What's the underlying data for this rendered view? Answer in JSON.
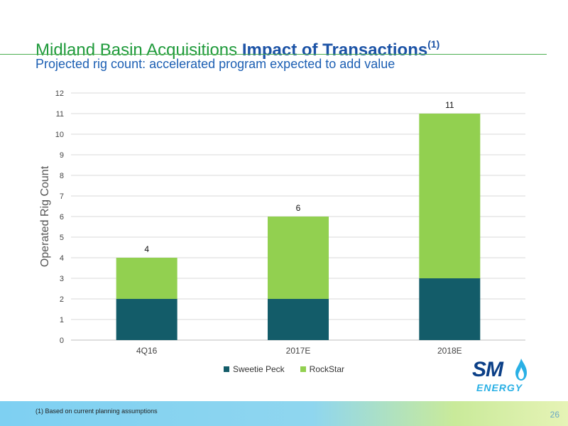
{
  "header": {
    "title_regular": "Midland Basin Acquisitions",
    "title_bold": "Impact of Transactions",
    "title_sup": "(1)",
    "subtitle": "Projected rig count: accelerated program expected to add value"
  },
  "chart_data": {
    "type": "bar",
    "stacked": true,
    "categories": [
      "4Q16",
      "2017E",
      "2018E"
    ],
    "series": [
      {
        "name": "Sweetie Peck",
        "values": [
          2,
          2,
          3
        ],
        "color": "#135c69"
      },
      {
        "name": "RockStar",
        "values": [
          2,
          4,
          8
        ],
        "color": "#92d050"
      }
    ],
    "totals": [
      4,
      6,
      11
    ],
    "ylabel": "Operated Rig Count",
    "xlabel": "",
    "ylim": [
      0,
      12
    ],
    "yticks": [
      0,
      1,
      2,
      3,
      4,
      5,
      6,
      7,
      8,
      9,
      10,
      11,
      12
    ],
    "grid": true,
    "legend_position": "bottom"
  },
  "logo": {
    "name": "SM Energy",
    "line1": "SM",
    "line2": "ENERGY",
    "flame_color": "#2ab0e5"
  },
  "footer": {
    "footnote": "(1)   Based on current planning assumptions",
    "page_number": "26"
  }
}
